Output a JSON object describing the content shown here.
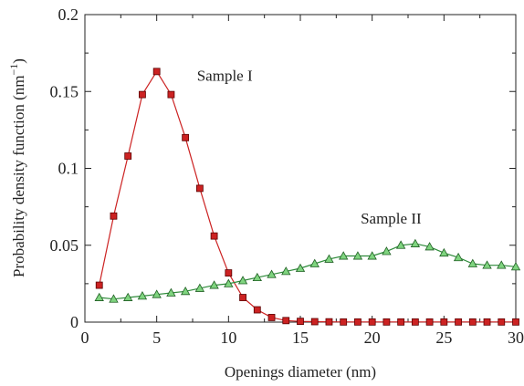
{
  "chart_data": {
    "type": "line",
    "xlabel": "Openings diameter (nm)",
    "ylabel": "Probability density function (nm",
    "ylabel_sup": "−1",
    "ylabel_tail": ")",
    "xlim": [
      0,
      30
    ],
    "ylim": [
      0,
      0.2
    ],
    "xticks": [
      0,
      5,
      10,
      15,
      20,
      25,
      30
    ],
    "xtick_labels": [
      "0",
      "5",
      "10",
      "15",
      "20",
      "25",
      "30"
    ],
    "yticks": [
      0,
      0.05,
      0.1,
      0.15,
      0.2
    ],
    "ytick_labels": [
      "0",
      "0.05",
      "0.1",
      "0.15",
      "0.2"
    ],
    "grid": false,
    "series": [
      {
        "name": "Sample I",
        "color": "#cc2222",
        "marker": "square",
        "x": [
          1,
          2,
          3,
          4,
          5,
          6,
          7,
          8,
          9,
          10,
          11,
          12,
          13,
          14,
          15,
          16,
          17,
          18,
          19,
          20,
          21,
          22,
          23,
          24,
          25,
          26,
          27,
          28,
          29,
          30
        ],
        "y": [
          0.024,
          0.069,
          0.108,
          0.148,
          0.163,
          0.148,
          0.12,
          0.087,
          0.056,
          0.032,
          0.016,
          0.008,
          0.003,
          0.001,
          0.0005,
          0.0003,
          0.0002,
          0.0001,
          0.0001,
          0.0001,
          0.0001,
          0.0001,
          0.0001,
          0.0001,
          0.0001,
          0.0001,
          0.0001,
          0.0001,
          0.0001,
          0.0001
        ]
      },
      {
        "name": "Sample II",
        "color": "#2e8b3a",
        "marker": "triangle",
        "x": [
          1,
          2,
          3,
          4,
          5,
          6,
          7,
          8,
          9,
          10,
          11,
          12,
          13,
          14,
          15,
          16,
          17,
          18,
          19,
          20,
          21,
          22,
          23,
          24,
          25,
          26,
          27,
          28,
          29,
          30
        ],
        "y": [
          0.016,
          0.015,
          0.016,
          0.017,
          0.018,
          0.019,
          0.02,
          0.022,
          0.024,
          0.025,
          0.027,
          0.029,
          0.031,
          0.033,
          0.035,
          0.038,
          0.041,
          0.043,
          0.043,
          0.043,
          0.046,
          0.05,
          0.051,
          0.049,
          0.045,
          0.042,
          0.038,
          0.037,
          0.037,
          0.036
        ]
      }
    ],
    "annotations": [
      {
        "text": "Sample I",
        "x": 7.8,
        "y": 0.157
      },
      {
        "text": "Sample II",
        "x": 19.2,
        "y": 0.064
      }
    ]
  }
}
